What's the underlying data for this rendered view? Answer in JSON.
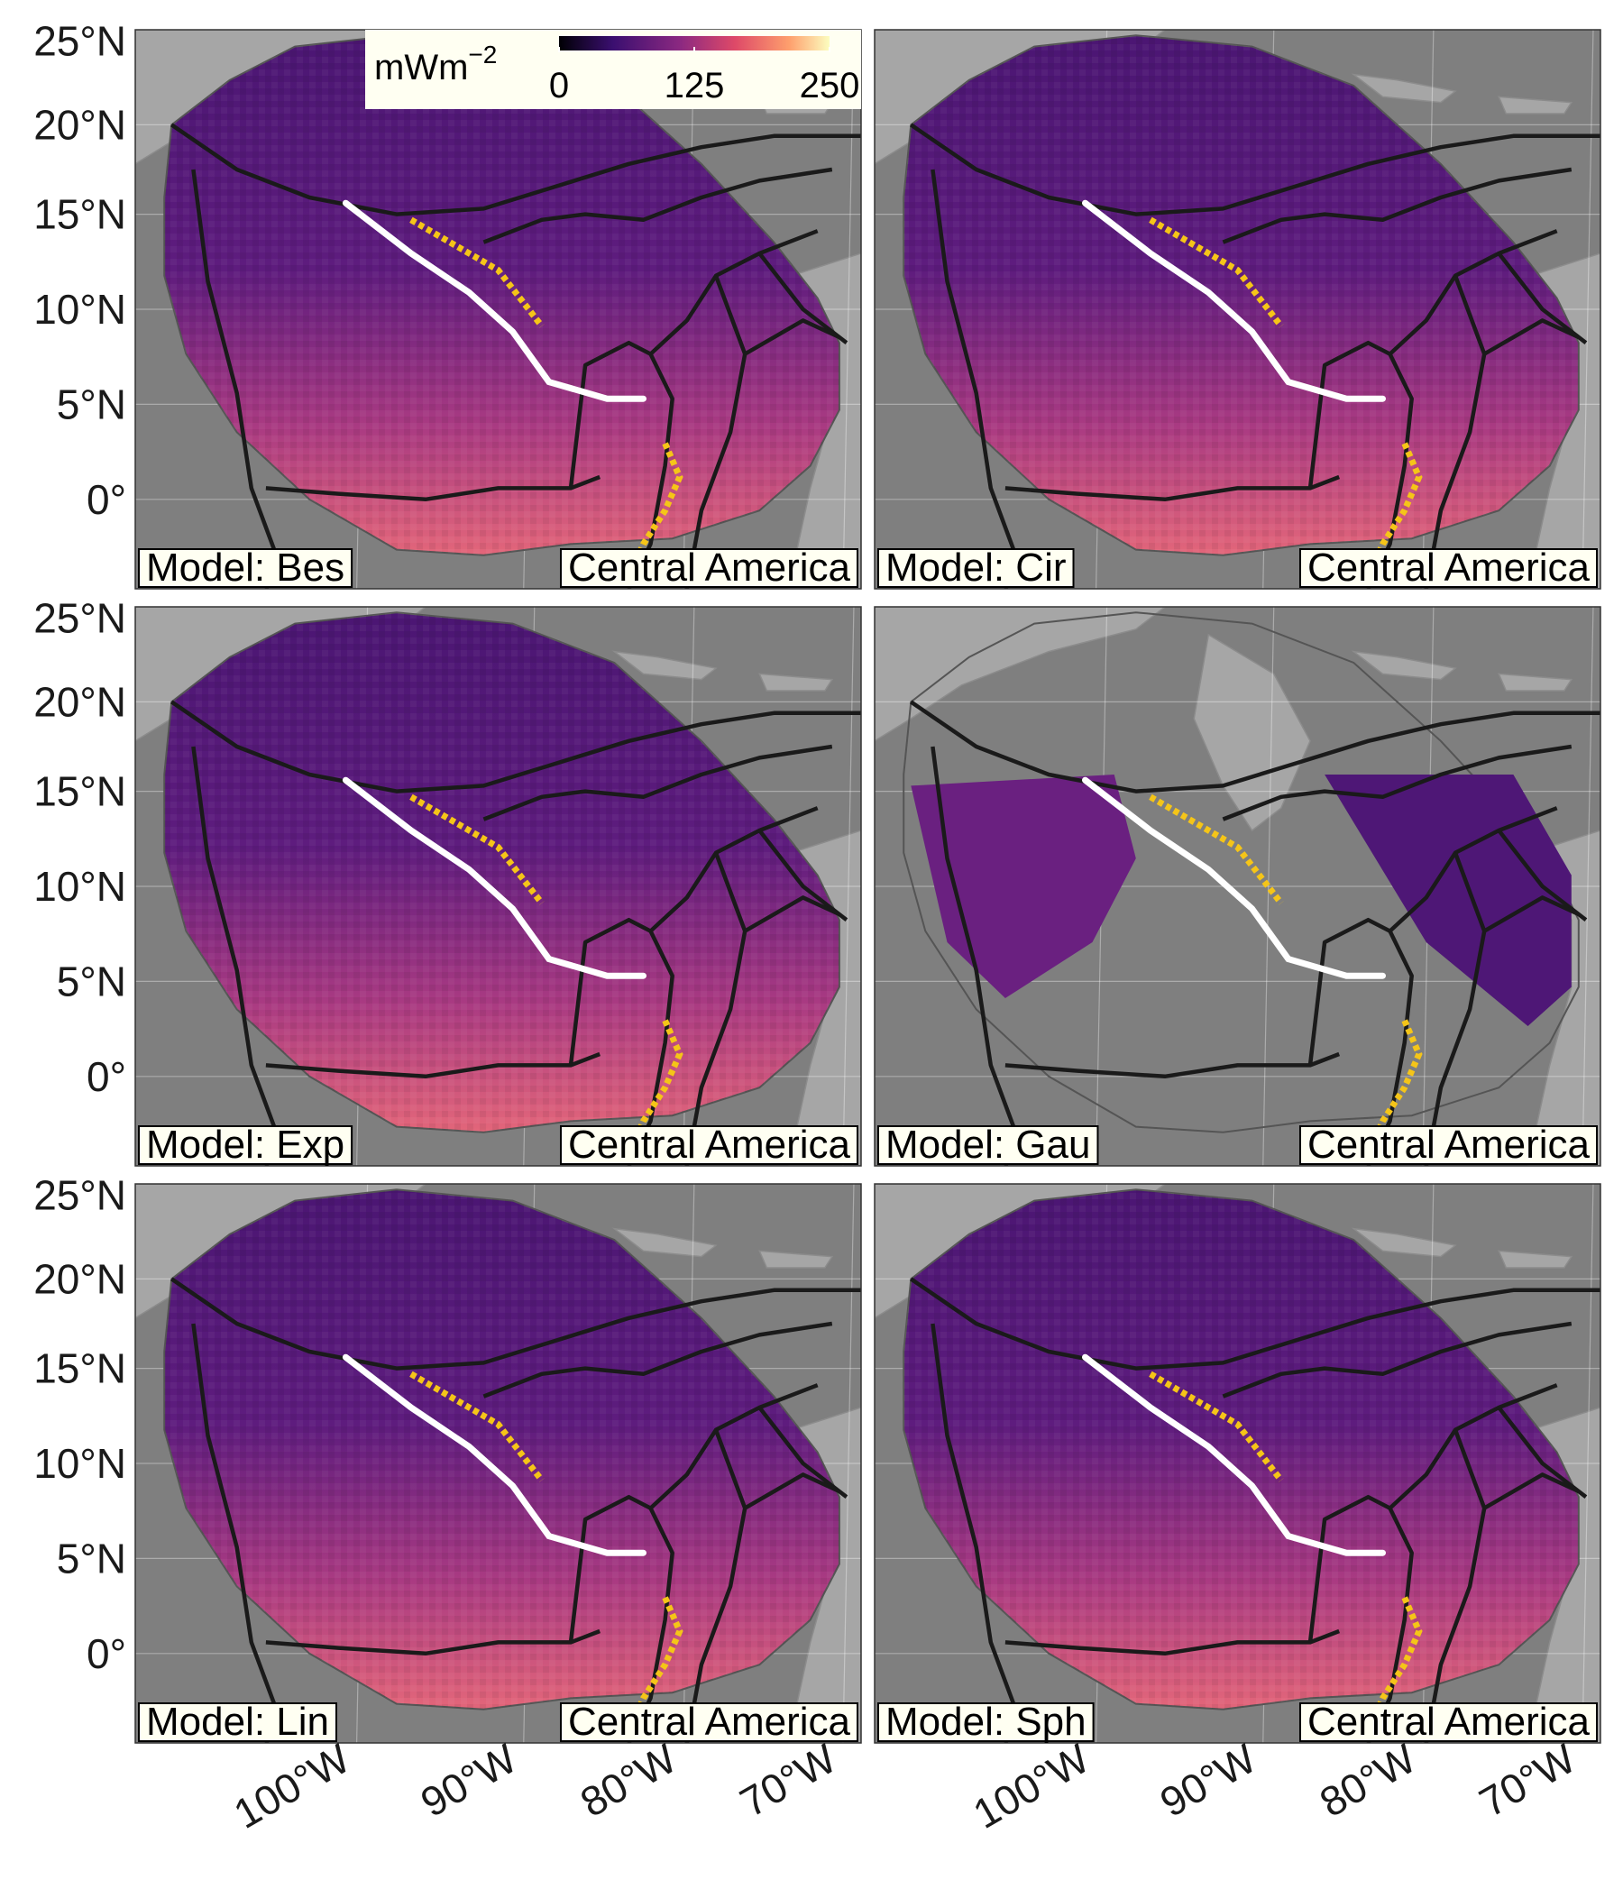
{
  "colorbar": {
    "unit": "mWm",
    "unit_exp": "−2",
    "ticks": [
      "0",
      "125",
      "250"
    ],
    "colors": [
      "#000004",
      "#3b0f70",
      "#8c2981",
      "#de4968",
      "#fe9f6d",
      "#fcfdbf"
    ]
  },
  "y_ticks": [
    "25°N",
    "20°N",
    "15°N",
    "10°N",
    "5°N",
    "0°"
  ],
  "x_ticks": [
    "100°W",
    "90°W",
    "80°W",
    "70°W"
  ],
  "region_label": "Central America",
  "panels": [
    {
      "model": "Model: Bes"
    },
    {
      "model": "Model: Cir"
    },
    {
      "model": "Model: Exp"
    },
    {
      "model": "Model: Gau"
    },
    {
      "model": "Model: Lin"
    },
    {
      "model": "Model: Sph"
    }
  ],
  "colors": {
    "ocean": "#7f7f7f",
    "land": "#a6a6a6",
    "boundary": "#1a1a1a",
    "segment": "#ffffff",
    "volcanoes": "#f5c518",
    "label_bg": "#fffff2"
  }
}
